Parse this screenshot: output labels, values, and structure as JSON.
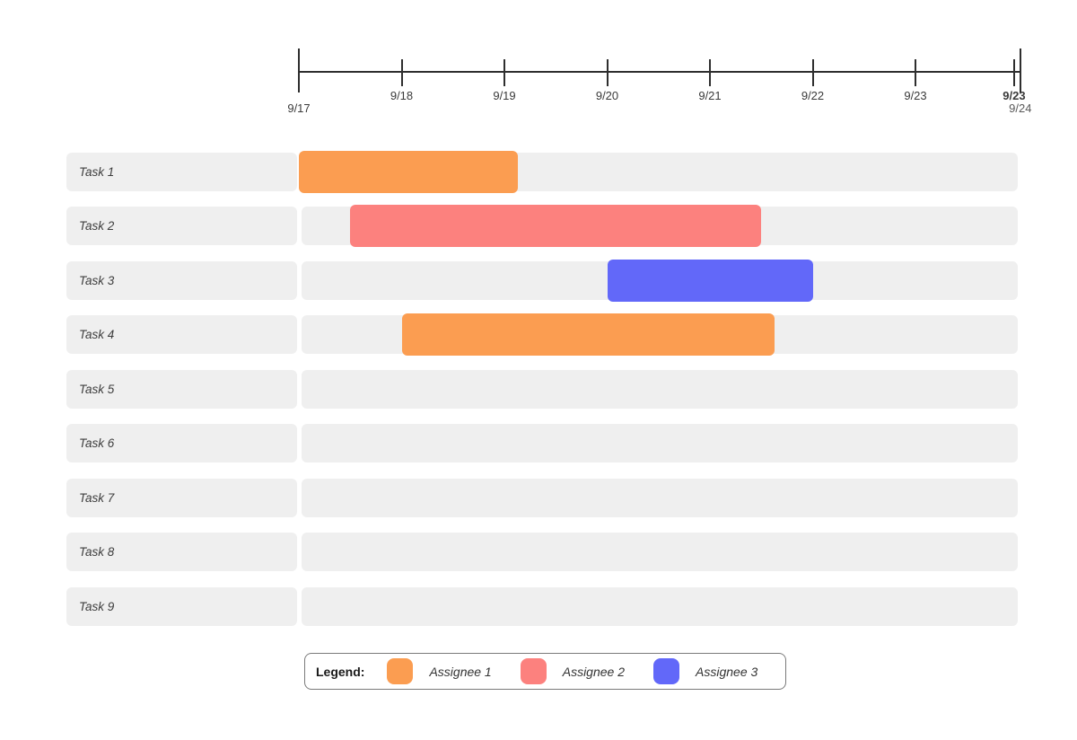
{
  "chart_data": {
    "type": "gantt",
    "title": "",
    "axis": {
      "unit": "day",
      "range_days": [
        0,
        7.02
      ],
      "ticks": [
        {
          "day": 0,
          "label": "9/17",
          "size": "tall",
          "label_row": 2,
          "bold": false,
          "muted": false
        },
        {
          "day": 1,
          "label": "9/18",
          "size": "short",
          "label_row": 1,
          "bold": false,
          "muted": false
        },
        {
          "day": 2,
          "label": "9/19",
          "size": "short",
          "label_row": 1,
          "bold": false,
          "muted": false
        },
        {
          "day": 3,
          "label": "9/20",
          "size": "short",
          "label_row": 1,
          "bold": false,
          "muted": false
        },
        {
          "day": 4,
          "label": "9/21",
          "size": "short",
          "label_row": 1,
          "bold": false,
          "muted": false
        },
        {
          "day": 5,
          "label": "9/22",
          "size": "short",
          "label_row": 1,
          "bold": false,
          "muted": false
        },
        {
          "day": 6,
          "label": "9/23",
          "size": "short",
          "label_row": 1,
          "bold": false,
          "muted": false
        },
        {
          "day": 6.96,
          "label": "9/23",
          "size": "short",
          "label_row": 1,
          "bold": true,
          "muted": false
        },
        {
          "day": 7.02,
          "label": "9/24",
          "size": "tall",
          "label_row": 2,
          "bold": false,
          "muted": true
        }
      ]
    },
    "tasks": [
      {
        "name": "Task 1",
        "assignee": "Assignee 1",
        "start_day": 0,
        "end_day": 2.13
      },
      {
        "name": "Task 2",
        "assignee": "Assignee 2",
        "start_day": 0.5,
        "end_day": 4.5
      },
      {
        "name": "Task 3",
        "assignee": "Assignee 3",
        "start_day": 3.0,
        "end_day": 5.0
      },
      {
        "name": "Task 4",
        "assignee": "Assignee 1",
        "start_day": 1.0,
        "end_day": 4.63
      },
      {
        "name": "Task 5",
        "assignee": null,
        "start_day": null,
        "end_day": null
      },
      {
        "name": "Task 6",
        "assignee": null,
        "start_day": null,
        "end_day": null
      },
      {
        "name": "Task 7",
        "assignee": null,
        "start_day": null,
        "end_day": null
      },
      {
        "name": "Task 8",
        "assignee": null,
        "start_day": null,
        "end_day": null
      },
      {
        "name": "Task 9",
        "assignee": null,
        "start_day": null,
        "end_day": null
      }
    ],
    "assignee_colors": {
      "Assignee 1": "#FB9D51",
      "Assignee 2": "#FC817E",
      "Assignee 3": "#6268F9"
    }
  },
  "legend": {
    "title": "Legend:",
    "items": [
      {
        "label": "Assignee 1",
        "color": "#FB9D51"
      },
      {
        "label": "Assignee 2",
        "color": "#FC817E"
      },
      {
        "label": "Assignee 3",
        "color": "#6268F9"
      }
    ]
  },
  "colors": {
    "track": "#EFEFEF",
    "axis": "#2E2E2E",
    "tick_label_text": "#3A3A3A",
    "muted_label_text": "#595959",
    "task_label_text": "#3D3D3D",
    "legend_border": "#7A7A7A"
  }
}
